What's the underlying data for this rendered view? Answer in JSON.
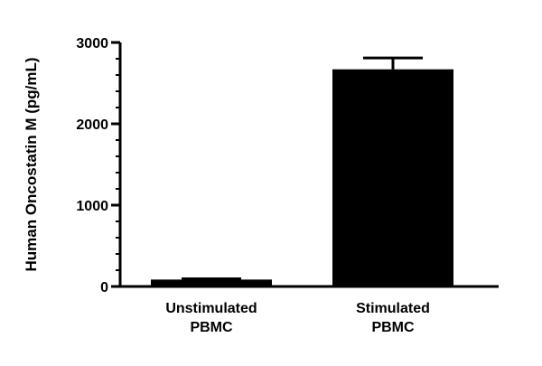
{
  "chart_data": {
    "type": "bar",
    "title": "",
    "xlabel": "",
    "ylabel": "Human Oncostatin M (pg/mL)",
    "ylim": [
      0,
      3000
    ],
    "yticks": [
      0,
      1000,
      2000,
      3000
    ],
    "minor_step": 200,
    "categories": [
      [
        "Unstimulated",
        "PBMC"
      ],
      [
        "Stimulated",
        "PBMC"
      ]
    ],
    "values": [
      85,
      2670
    ],
    "error": [
      10,
      140
    ],
    "bar_color": "#000000",
    "grid": false,
    "legend": "none"
  }
}
